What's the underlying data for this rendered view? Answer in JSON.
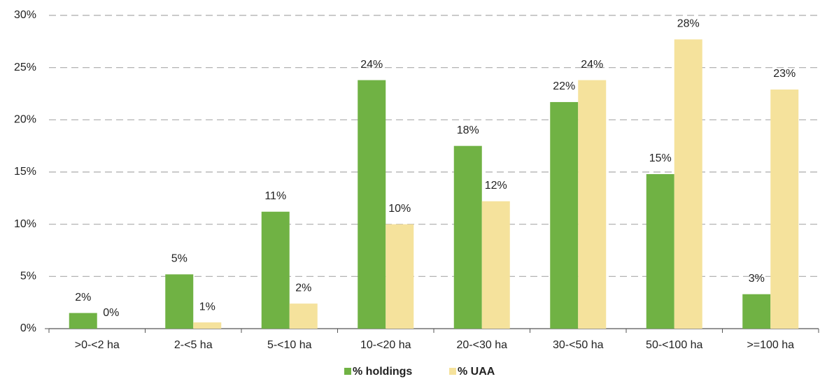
{
  "chart_data": {
    "type": "bar",
    "categories": [
      ">0-<2 ha",
      "2-<5 ha",
      "5-<10 ha",
      "10-<20 ha",
      "20-<30 ha",
      "30-<50 ha",
      "50-<100 ha",
      ">=100 ha"
    ],
    "series": [
      {
        "name": "% holdings",
        "color": "#70b244",
        "values": [
          1.5,
          5.2,
          11.2,
          23.8,
          17.5,
          21.7,
          14.8,
          3.3
        ],
        "value_labels": [
          "2%",
          "5%",
          "11%",
          "24%",
          "18%",
          "22%",
          "15%",
          "3%"
        ]
      },
      {
        "name": "% UAA",
        "color": "#f5e29c",
        "values": [
          0,
          0.6,
          2.4,
          10.0,
          12.2,
          23.8,
          27.7,
          22.9
        ],
        "value_labels": [
          "0%",
          "1%",
          "2%",
          "10%",
          "12%",
          "24%",
          "28%",
          "23%"
        ]
      }
    ],
    "ylim": [
      0,
      30
    ],
    "yticks": [
      {
        "value": 0,
        "label": "0%"
      },
      {
        "value": 5,
        "label": "5%"
      },
      {
        "value": 10,
        "label": "10%"
      },
      {
        "value": 15,
        "label": "15%"
      },
      {
        "value": 20,
        "label": "20%"
      },
      {
        "value": 25,
        "label": "25%"
      },
      {
        "value": 30,
        "label": "30%"
      }
    ],
    "grid": true,
    "legend": "bottom"
  }
}
